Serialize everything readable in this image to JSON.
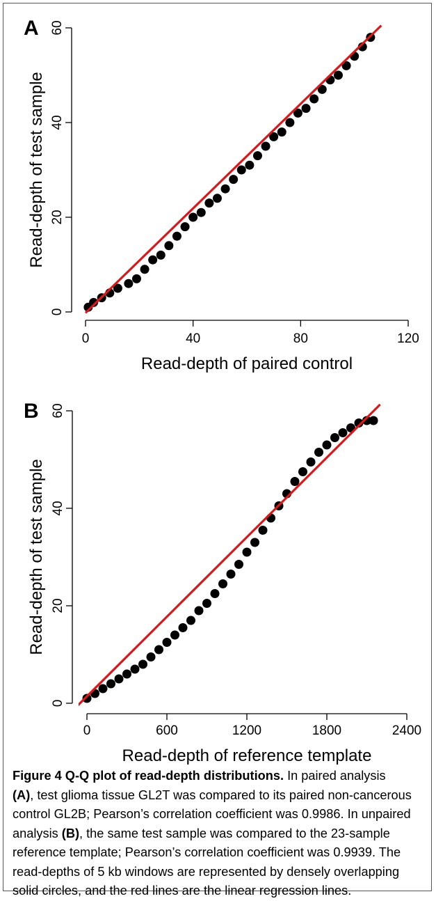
{
  "chart_data": [
    {
      "type": "scatter",
      "panel": "A",
      "xlabel": "Read-depth of paired control",
      "ylabel": "Read-depth of test sample",
      "xlim": [
        0,
        120
      ],
      "ylim": [
        0,
        60
      ],
      "xticks": [
        "0",
        "40",
        "80",
        "120"
      ],
      "yticks": [
        "0",
        "20",
        "40",
        "60"
      ],
      "points": {
        "x": [
          1,
          3,
          6,
          9,
          12,
          16,
          19,
          22,
          25,
          28,
          31,
          34,
          37,
          40,
          43,
          46,
          49,
          52,
          55,
          58,
          61,
          64,
          67,
          70,
          73,
          76,
          79,
          82,
          85,
          88,
          91,
          94,
          97,
          100,
          103,
          106
        ],
        "y": [
          1,
          2,
          3,
          4,
          5,
          6,
          7,
          9,
          11,
          12,
          14,
          16,
          18,
          20,
          21,
          23,
          24,
          26,
          28,
          30,
          31,
          33,
          35,
          37,
          38,
          40,
          42,
          43,
          45,
          47,
          49,
          50,
          52,
          54,
          56,
          58
        ]
      },
      "regression_line": {
        "x": [
          0,
          110
        ],
        "y": [
          -0.2,
          60.5
        ]
      },
      "colors": {
        "points": "#000000",
        "line": "#d7191c"
      }
    },
    {
      "type": "scatter",
      "panel": "B",
      "xlabel": "Read-depth of reference template",
      "ylabel": "Read-depth of test sample",
      "xlim": [
        0,
        2400
      ],
      "ylim": [
        0,
        60
      ],
      "xticks": [
        "0",
        "600",
        "1200",
        "1800",
        "2400"
      ],
      "yticks": [
        "0",
        "20",
        "40",
        "60"
      ],
      "points": {
        "x": [
          0,
          60,
          120,
          180,
          240,
          300,
          360,
          420,
          480,
          540,
          600,
          660,
          720,
          780,
          840,
          900,
          960,
          1020,
          1080,
          1140,
          1200,
          1260,
          1320,
          1380,
          1440,
          1500,
          1560,
          1620,
          1680,
          1740,
          1800,
          1860,
          1920,
          1980,
          2040,
          2100,
          2150
        ],
        "y": [
          1,
          2,
          3,
          4,
          5,
          6,
          7,
          8,
          9.5,
          11,
          12.5,
          14,
          15.5,
          17,
          19,
          20.5,
          22.5,
          24.5,
          26.5,
          28.5,
          31,
          33,
          35.5,
          38,
          40.5,
          43,
          45.5,
          47.5,
          49.5,
          51.5,
          53,
          54.5,
          55.5,
          56.5,
          57.5,
          58,
          58
        ]
      },
      "regression_line": {
        "x": [
          -100,
          2200
        ],
        "y": [
          -1.3,
          61.3
        ]
      },
      "colors": {
        "points": "#000000",
        "line": "#d7191c"
      }
    }
  ],
  "caption": {
    "label": "Figure 4 Q-Q plot of read-depth distributions.",
    "lines": [
      " In paired analysis",
      "(A), test glioma tissue GL2T was compared to its paired non-cancerous",
      "control GL2B; Pearson’s correlation coefficient was 0.9986. In unpaired",
      "analysis (B), the same test sample was compared to the 23-sample",
      "reference template; Pearson’s correlation coefficient was 0.9939. The",
      "read-depths of 5 kb windows are represented by densely overlapping",
      "solid circles, and the red lines are the linear regression lines."
    ]
  }
}
